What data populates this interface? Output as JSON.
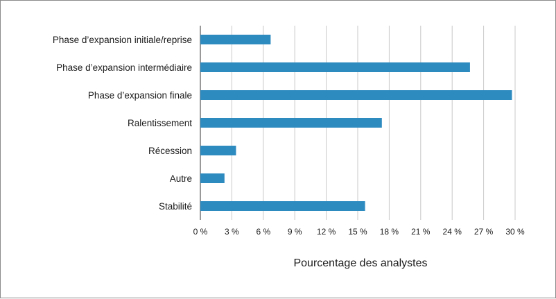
{
  "chart_data": {
    "type": "bar",
    "orientation": "horizontal",
    "title": "",
    "xlabel": "Pourcentage des analystes",
    "ylabel": "",
    "xlim": [
      0,
      30
    ],
    "x_ticks": [
      0,
      3,
      6,
      9,
      12,
      15,
      18,
      21,
      24,
      27,
      30
    ],
    "x_tick_labels": [
      "0 %",
      "3 %",
      "6 %",
      "9 %",
      "12 %",
      "15 %",
      "18 %",
      "21 %",
      "24 %",
      "27 %",
      "30 %"
    ],
    "grid": "vertical",
    "categories": [
      "Phase d’expansion initiale/reprise",
      "Phase d’expansion intermédiaire",
      "Phase d’expansion finale",
      "Ralentissement",
      "Récession",
      "Autre",
      "Stabilité"
    ],
    "values": [
      6.7,
      25.7,
      29.7,
      17.3,
      3.4,
      2.3,
      15.7
    ],
    "bar_color": "#2e8bc0",
    "grid_color": "#c8c8c8",
    "axis_color": "#333333"
  }
}
